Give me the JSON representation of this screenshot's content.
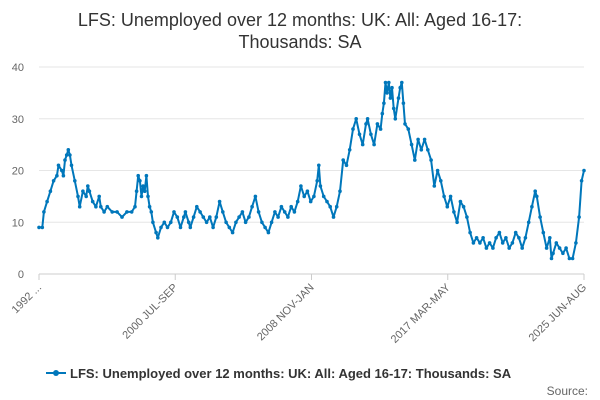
{
  "chart_data": {
    "type": "line",
    "title_line1": "LFS: Unemployed over 12 months: UK: All: Aged 16-17:",
    "title_line2": "Thousands: SA",
    "y_ticks": [
      "0",
      "10",
      "20",
      "30",
      "40"
    ],
    "ylim": [
      0,
      40
    ],
    "x_ticks": [
      "1992 ...",
      "2000 JUL-SEP",
      "2008 NOV-JAN",
      "2017 MAR-MAY",
      "2025 JUN-AUG"
    ],
    "x_range": [
      1992.0,
      2025.5
    ],
    "grid": true,
    "legend_position": "bottom",
    "color": "#0077bb",
    "credit": "Source:",
    "series": [
      {
        "name": "LFS: Unemployed over 12 months: UK: All: Aged 16-17: Thousands: SA",
        "points": [
          [
            1992.0,
            9
          ],
          [
            1992.2,
            9
          ],
          [
            1992.3,
            12
          ],
          [
            1992.5,
            14
          ],
          [
            1992.7,
            16
          ],
          [
            1992.9,
            18
          ],
          [
            1993.1,
            19
          ],
          [
            1993.2,
            21
          ],
          [
            1993.4,
            20
          ],
          [
            1993.5,
            19
          ],
          [
            1993.6,
            22
          ],
          [
            1993.7,
            23
          ],
          [
            1993.8,
            24
          ],
          [
            1993.9,
            23
          ],
          [
            1994.0,
            21
          ],
          [
            1994.2,
            18
          ],
          [
            1994.4,
            15
          ],
          [
            1994.5,
            13
          ],
          [
            1994.7,
            16
          ],
          [
            1994.9,
            15
          ],
          [
            1995.0,
            17
          ],
          [
            1995.1,
            16
          ],
          [
            1995.3,
            14
          ],
          [
            1995.5,
            13
          ],
          [
            1995.7,
            15
          ],
          [
            1995.8,
            13
          ],
          [
            1996.0,
            12
          ],
          [
            1996.2,
            13
          ],
          [
            1996.5,
            12
          ],
          [
            1996.8,
            12
          ],
          [
            1997.1,
            11
          ],
          [
            1997.4,
            12
          ],
          [
            1997.7,
            12
          ],
          [
            1997.9,
            13
          ],
          [
            1998.0,
            16
          ],
          [
            1998.1,
            19
          ],
          [
            1998.2,
            18
          ],
          [
            1998.3,
            15
          ],
          [
            1998.4,
            17
          ],
          [
            1998.5,
            16
          ],
          [
            1998.6,
            19
          ],
          [
            1998.7,
            15
          ],
          [
            1998.8,
            13
          ],
          [
            1998.9,
            12
          ],
          [
            1999.0,
            10
          ],
          [
            1999.2,
            8
          ],
          [
            1999.3,
            7
          ],
          [
            1999.5,
            9
          ],
          [
            1999.7,
            10
          ],
          [
            1999.9,
            9
          ],
          [
            2000.1,
            10
          ],
          [
            2000.3,
            12
          ],
          [
            2000.5,
            11
          ],
          [
            2000.7,
            9
          ],
          [
            2000.9,
            11
          ],
          [
            2001.0,
            12
          ],
          [
            2001.2,
            10
          ],
          [
            2001.3,
            9
          ],
          [
            2001.5,
            11
          ],
          [
            2001.7,
            13
          ],
          [
            2001.9,
            12
          ],
          [
            2002.1,
            11
          ],
          [
            2002.3,
            10
          ],
          [
            2002.5,
            11
          ],
          [
            2002.7,
            9
          ],
          [
            2002.9,
            11
          ],
          [
            2003.1,
            14
          ],
          [
            2003.3,
            12
          ],
          [
            2003.5,
            10
          ],
          [
            2003.7,
            9
          ],
          [
            2003.9,
            8
          ],
          [
            2004.1,
            10
          ],
          [
            2004.3,
            11
          ],
          [
            2004.5,
            12
          ],
          [
            2004.7,
            10
          ],
          [
            2004.9,
            11
          ],
          [
            2005.1,
            13
          ],
          [
            2005.3,
            15
          ],
          [
            2005.5,
            12
          ],
          [
            2005.7,
            10
          ],
          [
            2005.9,
            9
          ],
          [
            2006.1,
            8
          ],
          [
            2006.3,
            10
          ],
          [
            2006.5,
            12
          ],
          [
            2006.7,
            11
          ],
          [
            2006.9,
            13
          ],
          [
            2007.1,
            12
          ],
          [
            2007.3,
            11
          ],
          [
            2007.5,
            13
          ],
          [
            2007.7,
            12
          ],
          [
            2007.9,
            14
          ],
          [
            2008.1,
            17
          ],
          [
            2008.3,
            15
          ],
          [
            2008.5,
            16
          ],
          [
            2008.7,
            14
          ],
          [
            2008.9,
            15
          ],
          [
            2009.1,
            18
          ],
          [
            2009.2,
            21
          ],
          [
            2009.3,
            17
          ],
          [
            2009.5,
            15
          ],
          [
            2009.7,
            14
          ],
          [
            2009.9,
            13
          ],
          [
            2010.1,
            11
          ],
          [
            2010.3,
            13
          ],
          [
            2010.5,
            16
          ],
          [
            2010.7,
            22
          ],
          [
            2010.9,
            21
          ],
          [
            2011.1,
            24
          ],
          [
            2011.3,
            28
          ],
          [
            2011.5,
            30
          ],
          [
            2011.7,
            27
          ],
          [
            2011.9,
            25
          ],
          [
            2012.1,
            29
          ],
          [
            2012.2,
            30
          ],
          [
            2012.4,
            27
          ],
          [
            2012.6,
            25
          ],
          [
            2012.8,
            29
          ],
          [
            2013.0,
            28
          ],
          [
            2013.1,
            31
          ],
          [
            2013.2,
            33
          ],
          [
            2013.3,
            37
          ],
          [
            2013.4,
            35
          ],
          [
            2013.5,
            37
          ],
          [
            2013.6,
            34
          ],
          [
            2013.7,
            36
          ],
          [
            2013.8,
            32
          ],
          [
            2013.9,
            30
          ],
          [
            2014.1,
            34
          ],
          [
            2014.2,
            36
          ],
          [
            2014.3,
            37
          ],
          [
            2014.4,
            33
          ],
          [
            2014.5,
            29
          ],
          [
            2014.7,
            28
          ],
          [
            2014.9,
            25
          ],
          [
            2015.1,
            22
          ],
          [
            2015.3,
            26
          ],
          [
            2015.5,
            24
          ],
          [
            2015.7,
            26
          ],
          [
            2015.9,
            24
          ],
          [
            2016.1,
            22
          ],
          [
            2016.3,
            17
          ],
          [
            2016.5,
            20
          ],
          [
            2016.7,
            18
          ],
          [
            2016.9,
            15
          ],
          [
            2017.1,
            13
          ],
          [
            2017.3,
            15
          ],
          [
            2017.5,
            12
          ],
          [
            2017.7,
            10
          ],
          [
            2017.9,
            14
          ],
          [
            2018.1,
            13
          ],
          [
            2018.3,
            11
          ],
          [
            2018.5,
            8
          ],
          [
            2018.7,
            6
          ],
          [
            2018.9,
            7
          ],
          [
            2019.1,
            6
          ],
          [
            2019.3,
            7
          ],
          [
            2019.5,
            5
          ],
          [
            2019.7,
            6
          ],
          [
            2019.9,
            5
          ],
          [
            2020.1,
            7
          ],
          [
            2020.3,
            8
          ],
          [
            2020.5,
            6
          ],
          [
            2020.7,
            7
          ],
          [
            2020.9,
            5
          ],
          [
            2021.1,
            6
          ],
          [
            2021.3,
            8
          ],
          [
            2021.5,
            7
          ],
          [
            2021.7,
            5
          ],
          [
            2021.9,
            7
          ],
          [
            2022.1,
            10
          ],
          [
            2022.3,
            13
          ],
          [
            2022.5,
            16
          ],
          [
            2022.6,
            15
          ],
          [
            2022.8,
            11
          ],
          [
            2023.0,
            8
          ],
          [
            2023.2,
            5
          ],
          [
            2023.4,
            7
          ],
          [
            2023.5,
            3
          ],
          [
            2023.6,
            4
          ],
          [
            2023.8,
            6
          ],
          [
            2024.0,
            5
          ],
          [
            2024.2,
            4
          ],
          [
            2024.4,
            5
          ],
          [
            2024.6,
            3
          ],
          [
            2024.8,
            3
          ],
          [
            2025.0,
            6
          ],
          [
            2025.2,
            11
          ],
          [
            2025.35,
            18
          ],
          [
            2025.5,
            20
          ]
        ]
      }
    ]
  }
}
